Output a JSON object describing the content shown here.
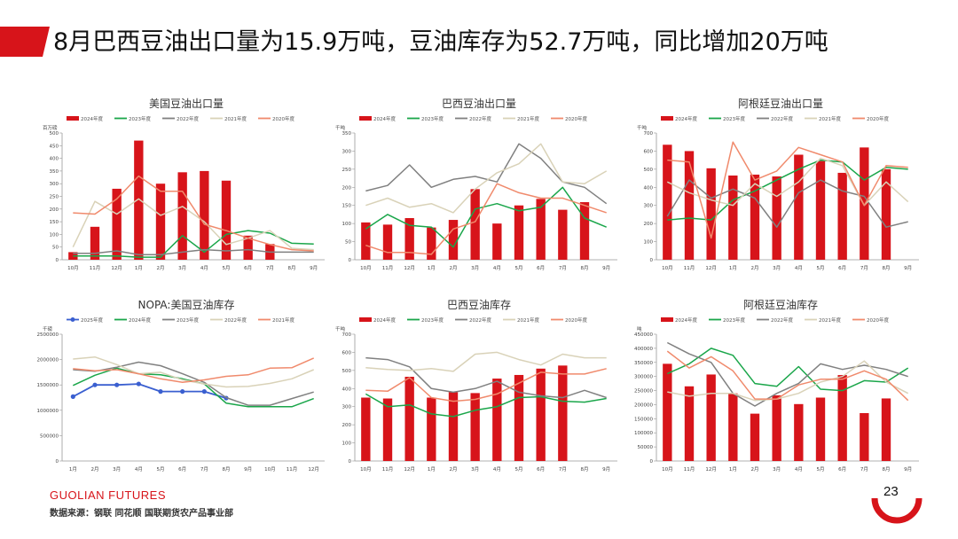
{
  "page": {
    "title": "8月巴西豆油出口量为15.9万吨，豆油库存为52.7万吨，同比增加20万吨",
    "brand": "GUOLIAN FUTURES",
    "source": "数据来源：钢联  同花顺  国联期货农产品事业部",
    "page_number": "23",
    "accent_color": "#d7141a"
  },
  "chart_data": [
    {
      "type": "bar",
      "title": "美国豆油出口量",
      "ylabel": "百万磅",
      "ylim": [
        0,
        500
      ],
      "yticks": [
        0,
        50,
        100,
        150,
        200,
        250,
        300,
        350,
        400,
        450,
        500
      ],
      "categories": [
        "10月",
        "11月",
        "12月",
        "1月",
        "2月",
        "3月",
        "4月",
        "5月",
        "6月",
        "7月",
        "8月",
        "9月"
      ],
      "legend": [
        "2024年度",
        "2023年度",
        "2022年度",
        "2021年度",
        "2020年度"
      ],
      "bar_series": {
        "name": "2024年度",
        "color": "#d7141a",
        "values": [
          30,
          130,
          280,
          470,
          300,
          345,
          350,
          312,
          95,
          62,
          null,
          null
        ]
      },
      "series": [
        {
          "name": "2023年度",
          "color": "#1aa64a",
          "values": [
            15,
            15,
            15,
            10,
            10,
            95,
            30,
            100,
            115,
            105,
            65,
            62
          ]
        },
        {
          "name": "2022年度",
          "color": "#808080",
          "values": [
            25,
            25,
            35,
            20,
            20,
            30,
            40,
            35,
            40,
            30,
            30,
            30
          ]
        },
        {
          "name": "2021年度",
          "color": "#d9d2b8",
          "values": [
            50,
            230,
            180,
            240,
            175,
            210,
            150,
            60,
            85,
            115,
            45,
            40
          ]
        },
        {
          "name": "2020年度",
          "color": "#f08a6c",
          "values": [
            185,
            180,
            240,
            330,
            270,
            270,
            140,
            115,
            85,
            60,
            40,
            35
          ]
        }
      ]
    },
    {
      "type": "bar",
      "title": "巴西豆油出口量",
      "ylabel": "千吨",
      "ylim": [
        0,
        350
      ],
      "yticks": [
        0,
        50,
        100,
        150,
        200,
        250,
        300,
        350
      ],
      "categories": [
        "10月",
        "11月",
        "12月",
        "1月",
        "2月",
        "3月",
        "4月",
        "5月",
        "6月",
        "7月",
        "8月",
        "9月"
      ],
      "legend": [
        "2024年度",
        "2023年度",
        "2022年度",
        "2021年度",
        "2020年度"
      ],
      "bar_series": {
        "name": "2024年度",
        "color": "#d7141a",
        "values": [
          103,
          97,
          115,
          89,
          110,
          195,
          100,
          150,
          168,
          138,
          159,
          null
        ]
      },
      "series": [
        {
          "name": "2023年度",
          "color": "#1aa64a",
          "values": [
            85,
            125,
            95,
            90,
            35,
            140,
            155,
            135,
            145,
            200,
            115,
            90
          ]
        },
        {
          "name": "2022年度",
          "color": "#808080",
          "values": [
            190,
            205,
            262,
            200,
            222,
            230,
            215,
            320,
            280,
            215,
            200,
            155
          ]
        },
        {
          "name": "2021年度",
          "color": "#d9d2b8",
          "values": [
            150,
            170,
            145,
            155,
            130,
            195,
            240,
            265,
            320,
            215,
            210,
            245
          ]
        },
        {
          "name": "2020年度",
          "color": "#f08a6c",
          "values": [
            40,
            20,
            20,
            15,
            85,
            105,
            210,
            185,
            170,
            170,
            150,
            130
          ]
        }
      ]
    },
    {
      "type": "bar",
      "title": "阿根廷豆油出口量",
      "ylabel": "千吨",
      "ylim": [
        0,
        700
      ],
      "yticks": [
        0,
        100,
        200,
        300,
        400,
        500,
        600,
        700
      ],
      "categories": [
        "10月",
        "11月",
        "12月",
        "1月",
        "2月",
        "3月",
        "4月",
        "5月",
        "6月",
        "7月",
        "8月",
        "9月"
      ],
      "legend": [
        "2024年度",
        "2023年度",
        "2022年度",
        "2021年度",
        "2020年度"
      ],
      "bar_series": {
        "name": "2024年度",
        "color": "#d7141a",
        "values": [
          635,
          600,
          505,
          465,
          470,
          460,
          580,
          545,
          480,
          620,
          500,
          null
        ]
      },
      "series": [
        {
          "name": "2023年度",
          "color": "#1aa64a",
          "values": [
            220,
            230,
            220,
            330,
            380,
            440,
            500,
            550,
            540,
            440,
            510,
            500
          ]
        },
        {
          "name": "2022年度",
          "color": "#808080",
          "values": [
            240,
            440,
            340,
            390,
            340,
            180,
            370,
            440,
            380,
            350,
            180,
            210
          ]
        },
        {
          "name": "2021年度",
          "color": "#d9d2b8",
          "values": [
            430,
            370,
            330,
            300,
            420,
            350,
            430,
            560,
            520,
            300,
            430,
            320
          ]
        },
        {
          "name": "2020年度",
          "color": "#f08a6c",
          "values": [
            550,
            540,
            120,
            650,
            440,
            490,
            620,
            580,
            540,
            300,
            520,
            510
          ]
        }
      ]
    },
    {
      "type": "line",
      "title": "NOPA:美国豆油库存",
      "ylabel": "千磅",
      "ylim": [
        0,
        2500000
      ],
      "yticks": [
        0,
        500000,
        1000000,
        1500000,
        2000000,
        2500000
      ],
      "categories": [
        "1月",
        "2月",
        "3月",
        "4月",
        "5月",
        "6月",
        "7月",
        "8月",
        "9月",
        "10月",
        "11月",
        "12月"
      ],
      "legend": [
        "2025年度",
        "2024年度",
        "2023年度",
        "2022年度",
        "2021年度"
      ],
      "series": [
        {
          "name": "2025年度",
          "color": "#3a5fd0",
          "marker": true,
          "values": [
            1270000,
            1500000,
            1500000,
            1520000,
            1370000,
            1370000,
            1370000,
            1240000,
            null,
            null,
            null,
            null
          ]
        },
        {
          "name": "2024年度",
          "color": "#1aa64a",
          "values": [
            1490000,
            1690000,
            1830000,
            1720000,
            1700000,
            1620000,
            1520000,
            1140000,
            1070000,
            1070000,
            1070000,
            1230000
          ]
        },
        {
          "name": "2023年度",
          "color": "#808080",
          "values": [
            1800000,
            1770000,
            1850000,
            1950000,
            1880000,
            1720000,
            1550000,
            1250000,
            1100000,
            1100000,
            1230000,
            1360000
          ]
        },
        {
          "name": "2022年度",
          "color": "#d9d2b8",
          "values": [
            2010000,
            2050000,
            1900000,
            1720000,
            1750000,
            1600000,
            1520000,
            1460000,
            1470000,
            1530000,
            1620000,
            1800000
          ]
        },
        {
          "name": "2021年度",
          "color": "#f08a6c",
          "values": [
            1820000,
            1780000,
            1800000,
            1720000,
            1620000,
            1550000,
            1600000,
            1670000,
            1700000,
            1830000,
            1840000,
            2030000
          ]
        }
      ]
    },
    {
      "type": "bar",
      "title": "巴西豆油库存",
      "ylabel": "千吨",
      "ylim": [
        0,
        700
      ],
      "yticks": [
        0,
        100,
        200,
        300,
        400,
        500,
        600,
        700
      ],
      "categories": [
        "10月",
        "11月",
        "12月",
        "1月",
        "2月",
        "3月",
        "4月",
        "5月",
        "6月",
        "7月",
        "8月",
        "9月"
      ],
      "legend": [
        "2024年度",
        "2023年度",
        "2022年度",
        "2021年度",
        "2020年度"
      ],
      "bar_series": {
        "name": "2024年度",
        "color": "#d7141a",
        "values": [
          350,
          345,
          465,
          350,
          380,
          375,
          455,
          475,
          510,
          527,
          null,
          null
        ]
      },
      "series": [
        {
          "name": "2023年度",
          "color": "#1aa64a",
          "values": [
            370,
            300,
            310,
            260,
            245,
            280,
            300,
            350,
            355,
            330,
            325,
            345
          ]
        },
        {
          "name": "2022年度",
          "color": "#808080",
          "values": [
            570,
            560,
            520,
            400,
            380,
            400,
            440,
            380,
            360,
            350,
            390,
            350
          ]
        },
        {
          "name": "2021年度",
          "color": "#d9d2b8",
          "values": [
            515,
            505,
            500,
            510,
            495,
            590,
            600,
            560,
            530,
            590,
            570,
            570
          ]
        },
        {
          "name": "2020年度",
          "color": "#f08a6c",
          "values": [
            390,
            385,
            460,
            350,
            330,
            340,
            370,
            430,
            490,
            480,
            480,
            510
          ]
        }
      ]
    },
    {
      "type": "bar",
      "title": "阿根廷豆油库存",
      "ylabel": "吨",
      "ylim": [
        0,
        450000
      ],
      "yticks": [
        0,
        50000,
        100000,
        150000,
        200000,
        250000,
        300000,
        350000,
        400000,
        450000
      ],
      "categories": [
        "10月",
        "11月",
        "12月",
        "1月",
        "2月",
        "3月",
        "4月",
        "5月",
        "6月",
        "7月",
        "8月",
        "9月"
      ],
      "legend": [
        "2024年度",
        "2023年度",
        "2022年度",
        "2021年度",
        "2020年度"
      ],
      "bar_series": {
        "name": "2024年度",
        "color": "#d7141a",
        "values": [
          345000,
          265000,
          307000,
          240000,
          168000,
          233000,
          202000,
          225000,
          305000,
          170000,
          222000,
          null
        ]
      },
      "series": [
        {
          "name": "2023年度",
          "color": "#1aa64a",
          "values": [
            310000,
            345000,
            400000,
            375000,
            275000,
            265000,
            335000,
            255000,
            250000,
            285000,
            280000,
            330000
          ]
        },
        {
          "name": "2022年度",
          "color": "#808080",
          "values": [
            420000,
            380000,
            350000,
            240000,
            195000,
            240000,
            275000,
            345000,
            325000,
            340000,
            325000,
            300000
          ]
        },
        {
          "name": "2021年度",
          "color": "#d9d2b8",
          "values": [
            245000,
            230000,
            240000,
            240000,
            215000,
            220000,
            240000,
            280000,
            300000,
            355000,
            280000,
            240000
          ]
        },
        {
          "name": "2020年度",
          "color": "#f08a6c",
          "values": [
            390000,
            330000,
            370000,
            320000,
            220000,
            220000,
            270000,
            290000,
            290000,
            320000,
            290000,
            215000
          ]
        }
      ]
    }
  ]
}
